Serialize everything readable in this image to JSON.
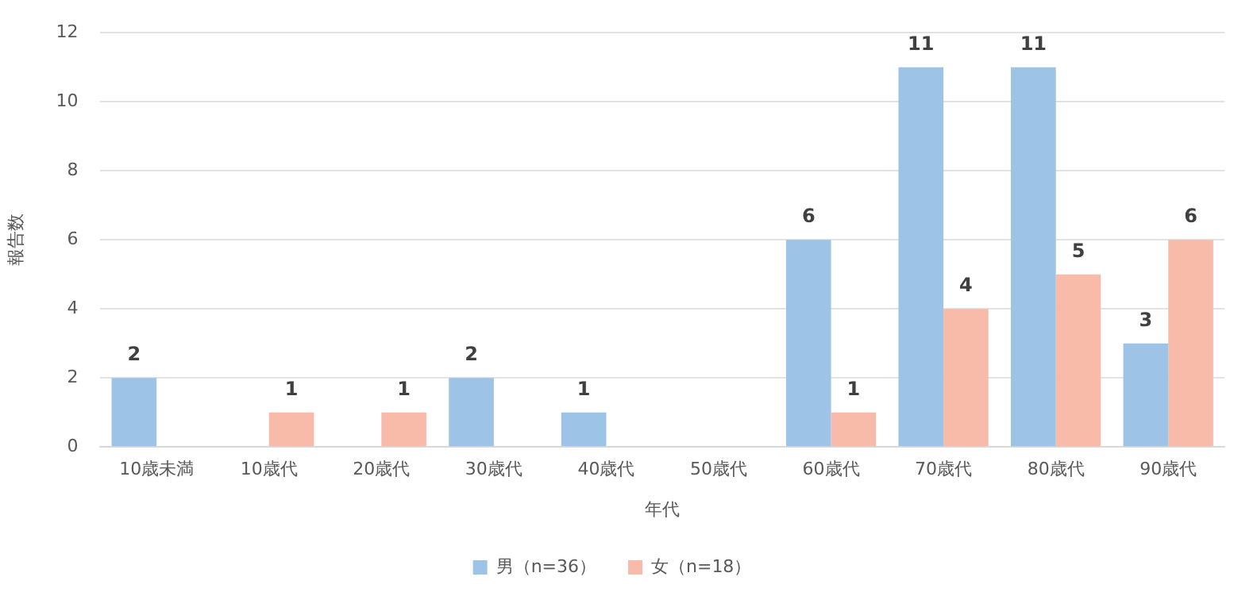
{
  "chart_data": {
    "type": "bar",
    "xlabel": "年代",
    "ylabel": "報告数",
    "categories": [
      "10歳未満",
      "10歳代",
      "20歳代",
      "30歳代",
      "40歳代",
      "50歳代",
      "60歳代",
      "70歳代",
      "80歳代",
      "90歳代"
    ],
    "series": [
      {
        "name": "男（n=36）",
        "color": "#9dc3e6",
        "values": [
          2,
          0,
          0,
          2,
          1,
          0,
          6,
          11,
          11,
          3
        ],
        "value_labels": [
          "2",
          null,
          null,
          "2",
          "1",
          null,
          "6",
          "11",
          "11",
          "3"
        ]
      },
      {
        "name": "女（n=18）",
        "color": "#f8bbaa",
        "values": [
          0,
          1,
          1,
          0,
          0,
          0,
          1,
          4,
          5,
          6
        ],
        "value_labels": [
          null,
          "1",
          "1",
          null,
          null,
          null,
          "1",
          "4",
          "5",
          "6"
        ]
      }
    ],
    "ylim": [
      0,
      12
    ],
    "yticks": [
      0,
      2,
      4,
      6,
      8,
      10,
      12
    ],
    "grid": "y",
    "legend": "bottom"
  }
}
